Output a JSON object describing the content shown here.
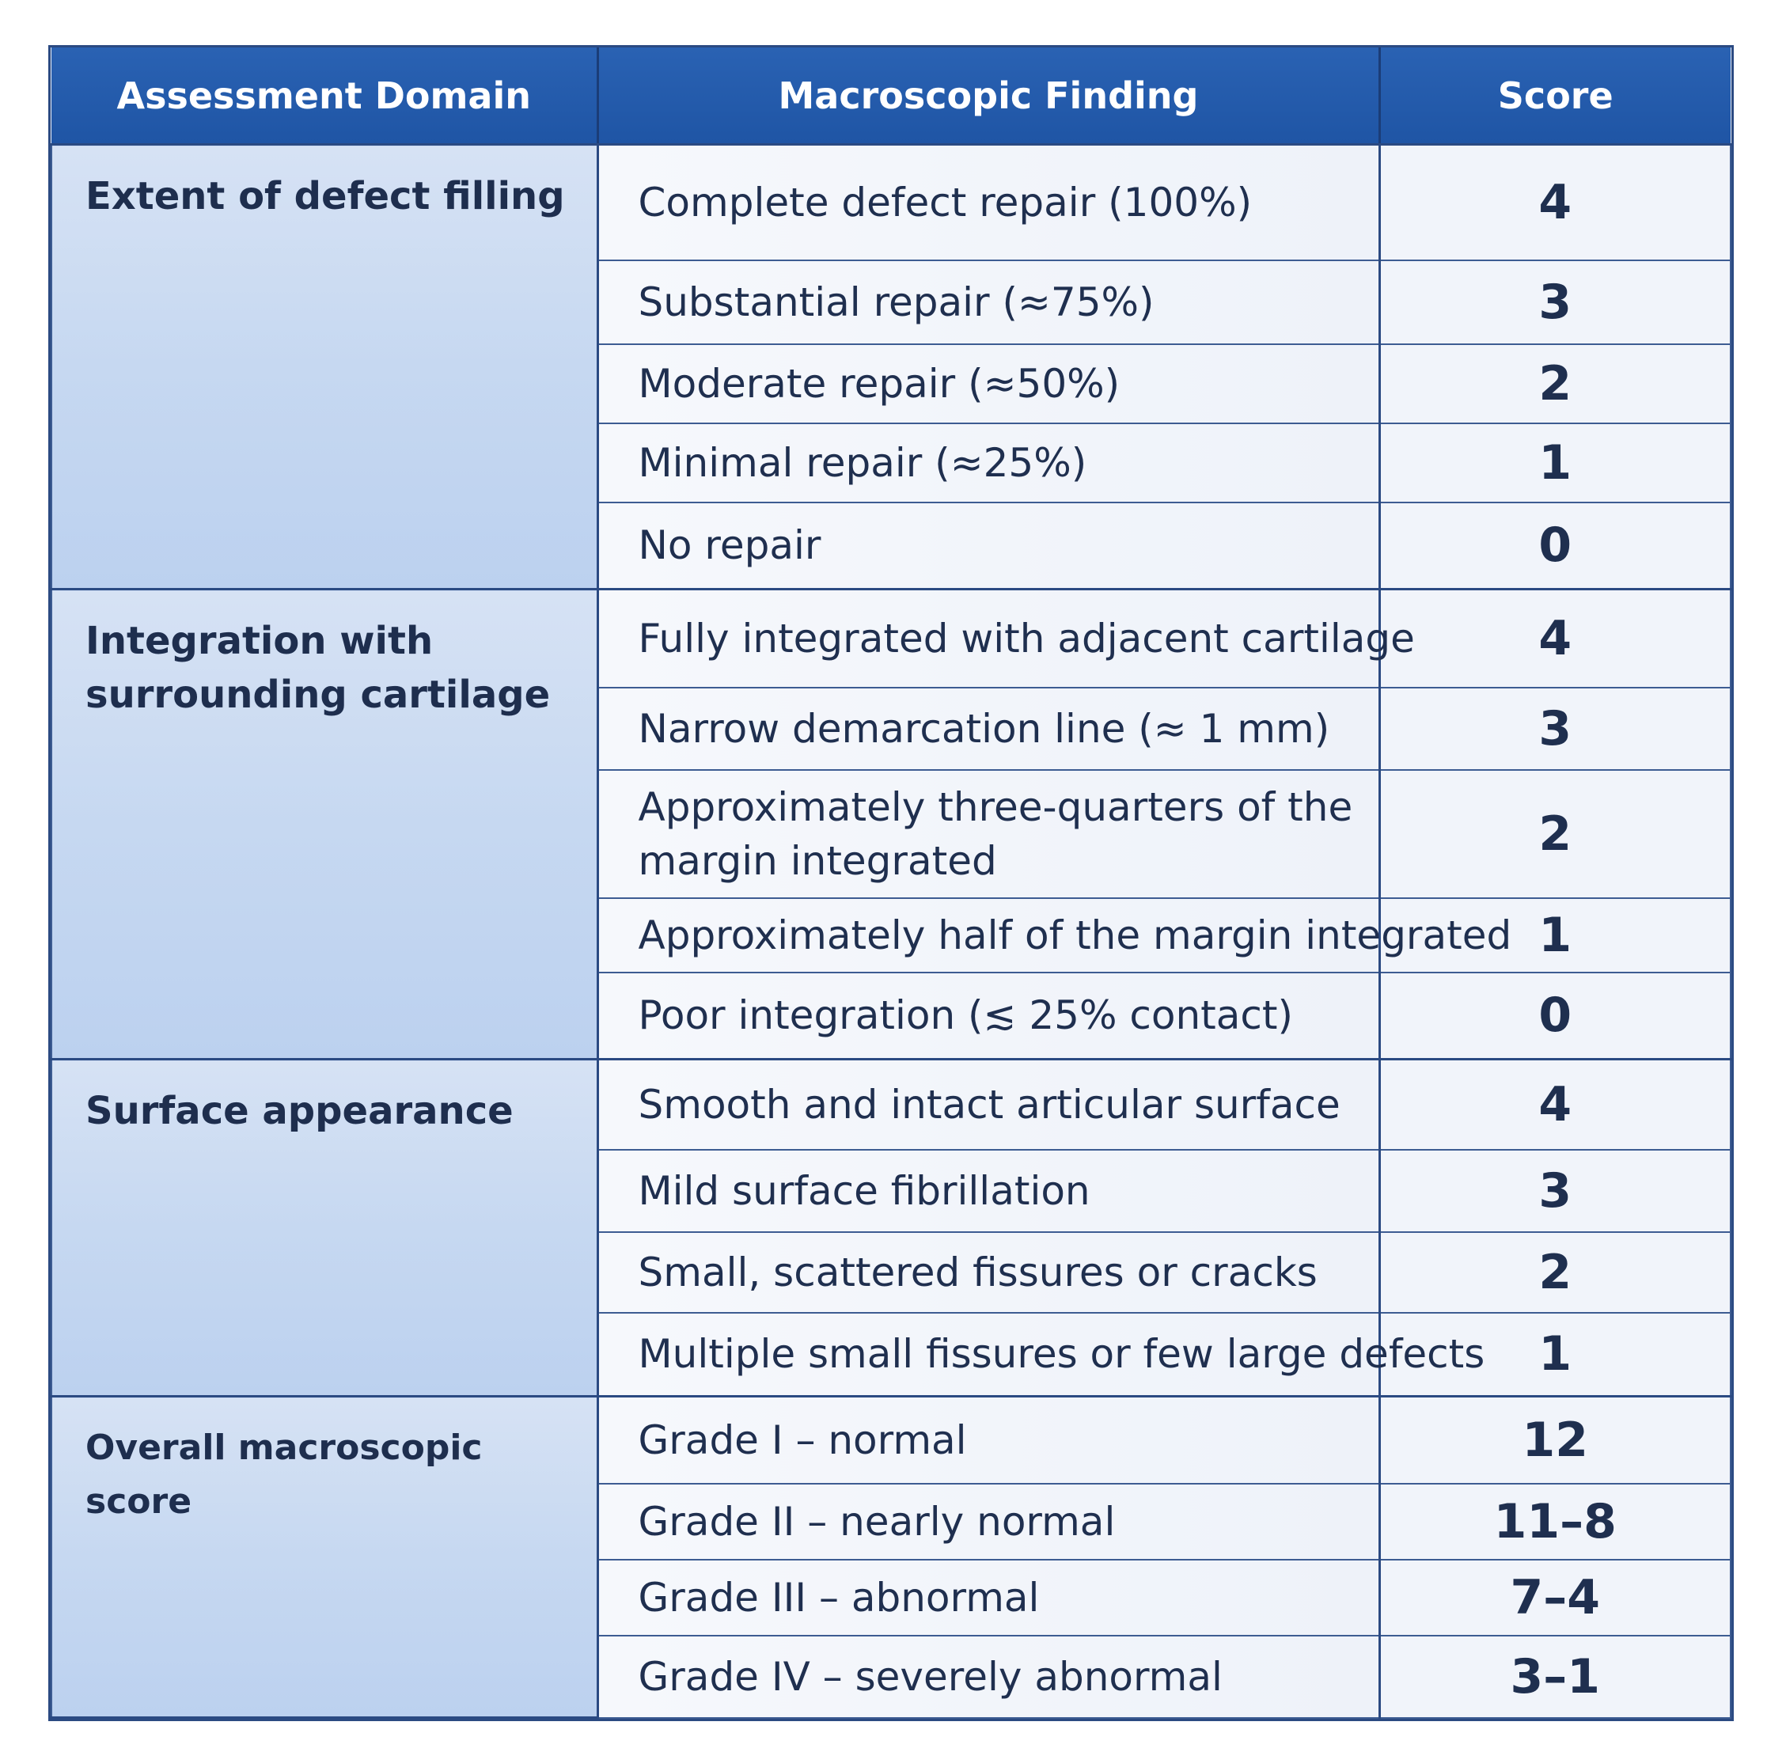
{
  "headers": {
    "domain": "Assessment Domain",
    "finding": "Macroscopic Finding",
    "score": "Score"
  },
  "groups": [
    {
      "domain": "Extent of defect filling",
      "rows": [
        {
          "finding": "Complete defect repair (100%)",
          "score": "4"
        },
        {
          "finding": "Substantial repair (≈75%)",
          "score": "3"
        },
        {
          "finding": "Moderate repair (≈50%)",
          "score": "2"
        },
        {
          "finding": "Minimal repair (≈25%)",
          "score": "1"
        },
        {
          "finding": "No repair",
          "score": "0"
        }
      ]
    },
    {
      "domain": "Integration with surrounding cartilage",
      "rows": [
        {
          "finding": "Fully integrated with adjacent cartilage",
          "score": "4"
        },
        {
          "finding": "Narrow demarcation line (≈ 1 mm)",
          "score": "3"
        },
        {
          "finding": "Approximately three-quarters of the margin integrated",
          "score": "2"
        },
        {
          "finding": "Approximately half of the margin integrated",
          "score": "1"
        },
        {
          "finding": "Poor integration (≲ 25% contact)",
          "score": "0"
        }
      ]
    },
    {
      "domain": "Surface appearance",
      "rows": [
        {
          "finding": "Smooth and intact articular surface",
          "score": "4"
        },
        {
          "finding": "Mild surface fibrillation",
          "score": "3"
        },
        {
          "finding": "Small, scattered fissures or cracks",
          "score": "2"
        },
        {
          "finding": "Multiple small fissures or few large defects",
          "score": "1"
        }
      ]
    },
    {
      "domain": "Overall macroscopic score",
      "rows": [
        {
          "finding": "Grade I – normal",
          "score": "12"
        },
        {
          "finding": "Grade II – nearly normal",
          "score": "11–8"
        },
        {
          "finding": "Grade III – abnormal",
          "score": "7–4"
        },
        {
          "finding": "Grade IV – severely abnormal",
          "score": "3–1"
        }
      ]
    }
  ]
}
